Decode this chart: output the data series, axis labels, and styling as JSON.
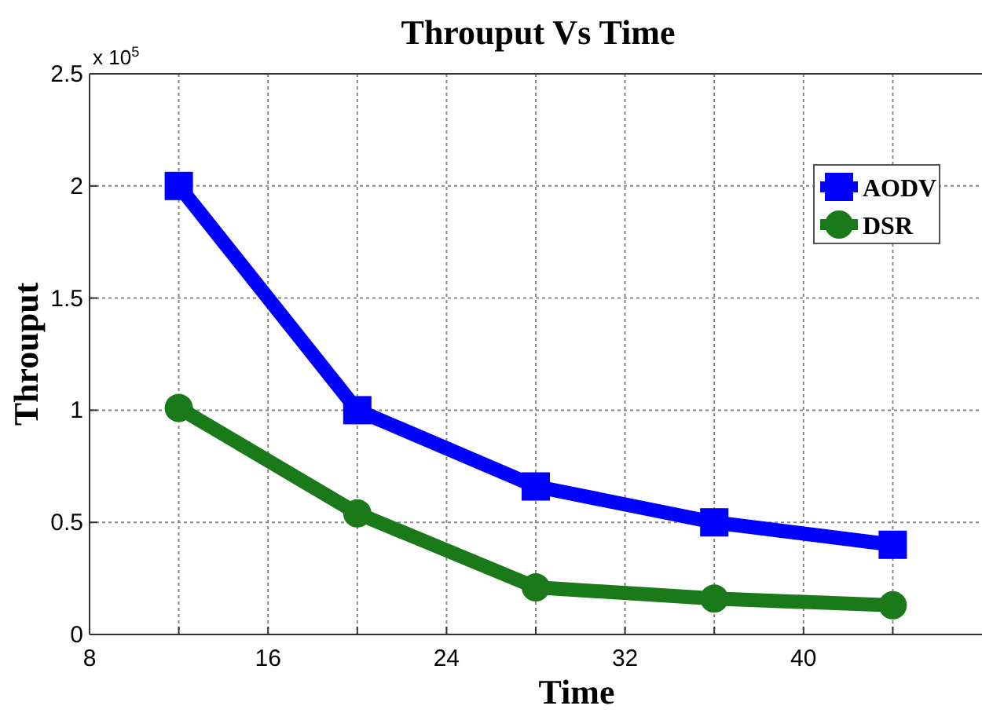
{
  "chart_data": {
    "type": "line",
    "title": "Throuput Vs Time",
    "xlabel": "Time",
    "ylabel": "Throuput",
    "annotations": [
      "x 10$^{5}$"
    ],
    "x": [
      12,
      20,
      28,
      36,
      44
    ],
    "series": [
      {
        "name": "AODV",
        "color": "#0000ff",
        "marker": "square",
        "values": [
          2,
          1,
          0.66,
          0.5,
          0.4
        ]
      },
      {
        "name": "DSR",
        "color": "#1a7a1a",
        "marker": "circle",
        "values": [
          1.01,
          0.54,
          0.21,
          0.16,
          0.13
        ]
      }
    ],
    "xlim": [
      8,
      48
    ],
    "xticks": [
      8,
      {
        "value": 12,
        "label": null
      },
      16,
      {
        "value": 20,
        "label": null
      },
      24,
      {
        "value": 28,
        "label": null
      },
      32,
      {
        "value": 36,
        "label": null
      },
      40,
      {
        "value": 44,
        "label": null
      }
    ],
    "ylim": [
      0,
      2.5
    ],
    "yticks": [
      0,
      0.5,
      1,
      1.5,
      2,
      2.5
    ],
    "grid": true,
    "legend": "top right",
    "line_style": "solid"
  }
}
